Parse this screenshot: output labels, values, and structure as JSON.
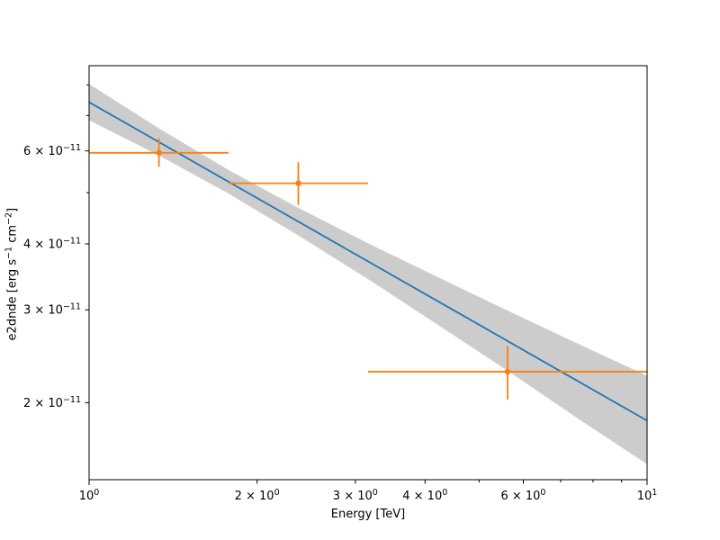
{
  "chart_data": {
    "type": "scatter",
    "title": "",
    "xlabel": "Energy [TeV]",
    "ylabel": "e2dnde [erg s⁻¹ cm⁻²]",
    "ylabel_parts": [
      {
        "t": "e2dnde [erg s"
      },
      {
        "t": "−1",
        "sup": true
      },
      {
        "t": " cm"
      },
      {
        "t": "−2",
        "sup": true
      },
      {
        "t": "]"
      }
    ],
    "xscale": "log",
    "yscale": "log",
    "xlim": [
      1.0,
      10.0
    ],
    "ylim": [
      1.43e-11,
      8.7e-11
    ],
    "grid": false,
    "legend": "none",
    "colors": {
      "fit_line": "#1f77b4",
      "flux_points": "#ff7f0e",
      "confidence_band": "#cccccc",
      "frame": "#000000",
      "text": "#000000"
    },
    "x_ticks": [
      {
        "value": 1,
        "text": "10",
        "sup": "0",
        "labeled": true
      },
      {
        "value": 2,
        "text": "2 × 10",
        "sup": "0",
        "labeled": true
      },
      {
        "value": 3,
        "text": "3 × 10",
        "sup": "0",
        "labeled": true
      },
      {
        "value": 4,
        "text": "4 × 10",
        "sup": "0",
        "labeled": true
      },
      {
        "value": 5,
        "text": "",
        "sup": "",
        "labeled": false
      },
      {
        "value": 6,
        "text": "6 × 10",
        "sup": "0",
        "labeled": true
      },
      {
        "value": 7,
        "text": "",
        "sup": "",
        "labeled": false
      },
      {
        "value": 8,
        "text": "",
        "sup": "",
        "labeled": false
      },
      {
        "value": 9,
        "text": "",
        "sup": "",
        "labeled": false
      },
      {
        "value": 10,
        "text": "10",
        "sup": "1",
        "labeled": true
      }
    ],
    "y_ticks": [
      {
        "value": 8e-11,
        "text": "",
        "sup": "",
        "labeled": false
      },
      {
        "value": 7e-11,
        "text": "",
        "sup": "",
        "labeled": false
      },
      {
        "value": 6e-11,
        "text": "6 × 10",
        "sup": "−11",
        "labeled": true
      },
      {
        "value": 5e-11,
        "text": "",
        "sup": "",
        "labeled": false
      },
      {
        "value": 4e-11,
        "text": "4 × 10",
        "sup": "−11",
        "labeled": true
      },
      {
        "value": 3e-11,
        "text": "3 × 10",
        "sup": "−11",
        "labeled": true
      },
      {
        "value": 2e-11,
        "text": "2 × 10",
        "sup": "−11",
        "labeled": true
      }
    ],
    "fit_line": {
      "name": "power-law fit",
      "x": [
        1.0,
        10.0
      ],
      "y": [
        7.42e-11,
        1.85e-11
      ]
    },
    "confidence_band": {
      "name": "fit error band",
      "x": [
        1.0,
        1.334,
        1.778,
        2.371,
        3.162,
        4.217,
        5.623,
        7.499,
        10.0
      ],
      "upper": [
        8.03e-11,
        6.62e-11,
        5.52e-11,
        4.68e-11,
        4.01e-11,
        3.46e-11,
        2.99e-11,
        2.59e-11,
        2.25e-11
      ],
      "lower": [
        6.86e-11,
        5.88e-11,
        4.98e-11,
        4.15e-11,
        3.43e-11,
        2.81e-11,
        2.3e-11,
        1.87e-11,
        1.53e-11
      ]
    },
    "flux_points": [
      {
        "e": 1.334,
        "e_lo": 1.0,
        "e_hi": 1.778,
        "y": 5.95e-11,
        "y_lo": 5.6e-11,
        "y_hi": 6.35e-11
      },
      {
        "e": 2.371,
        "e_lo": 1.778,
        "e_hi": 3.162,
        "y": 5.21e-11,
        "y_lo": 4.74e-11,
        "y_hi": 5.71e-11
      },
      {
        "e": 5.623,
        "e_lo": 3.162,
        "e_hi": 10.0,
        "y": 2.29e-11,
        "y_lo": 2.03e-11,
        "y_hi": 2.56e-11
      }
    ]
  }
}
